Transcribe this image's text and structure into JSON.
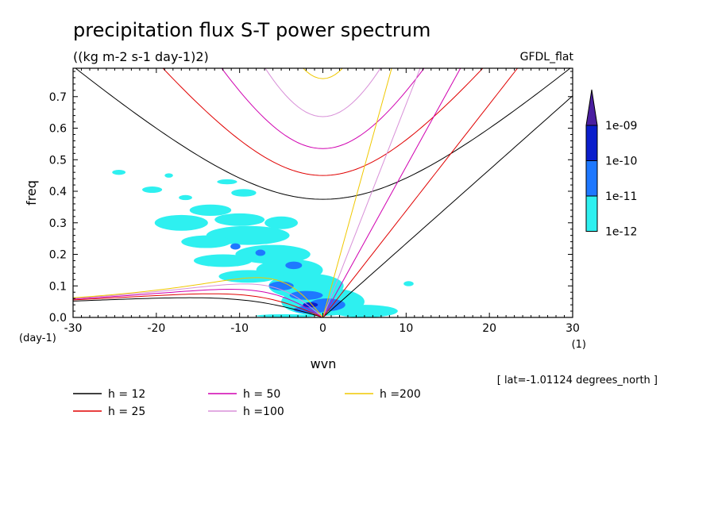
{
  "chart_data": {
    "type": "heatmap",
    "title": "precipitation flux S-T power spectrum",
    "subtitle": "((kg m-2 s-1 day-1)2)",
    "dataset_label": "GFDL_flat",
    "xlabel": "wvn",
    "ylabel": "freq",
    "x_unit": "(1)",
    "y_unit": "(day-1)",
    "xlim": [
      -30,
      30
    ],
    "ylim": [
      0,
      0.79
    ],
    "x_ticks": [
      "-30",
      "-20",
      "-10",
      "0",
      "10",
      "20",
      "30"
    ],
    "y_ticks": [
      "0.0",
      "0.1",
      "0.2",
      "0.3",
      "0.4",
      "0.5",
      "0.6",
      "0.7"
    ],
    "annotation": "[ lat=-1.01124 degrees_north ]",
    "colorbar": {
      "levels": [
        "1e-12",
        "1e-11",
        "1e-10",
        "1e-09"
      ],
      "colors": [
        "#2ef0f0",
        "#1e78ff",
        "#0a1ecc",
        "#4a1ea0"
      ]
    },
    "series": [
      {
        "name": "h = 12",
        "color": "#000000",
        "h": 12
      },
      {
        "name": "h = 25",
        "color": "#e00000",
        "h": 25
      },
      {
        "name": "h = 50",
        "color": "#d000b0",
        "h": 50
      },
      {
        "name": "h =100",
        "color": "#d890d8",
        "h": 100
      },
      {
        "name": "h =200",
        "color": "#f0c800",
        "h": 200
      }
    ],
    "blobs": [
      {
        "x": -24.5,
        "y": 0.46,
        "rx": 0.8,
        "ry": 0.008,
        "level": 0
      },
      {
        "x": -18.5,
        "y": 0.45,
        "rx": 0.5,
        "ry": 0.007,
        "level": 0
      },
      {
        "x": -11.5,
        "y": 0.43,
        "rx": 1.2,
        "ry": 0.008,
        "level": 0
      },
      {
        "x": -9.5,
        "y": 0.395,
        "rx": 1.5,
        "ry": 0.012,
        "level": 0
      },
      {
        "x": -20.5,
        "y": 0.405,
        "rx": 1.2,
        "ry": 0.01,
        "level": 0
      },
      {
        "x": -16.5,
        "y": 0.38,
        "rx": 0.8,
        "ry": 0.008,
        "level": 0
      },
      {
        "x": -13.5,
        "y": 0.34,
        "rx": 2.5,
        "ry": 0.018,
        "level": 0
      },
      {
        "x": -17,
        "y": 0.3,
        "rx": 3.2,
        "ry": 0.025,
        "level": 0
      },
      {
        "x": -10,
        "y": 0.31,
        "rx": 3.0,
        "ry": 0.02,
        "level": 0
      },
      {
        "x": -5,
        "y": 0.3,
        "rx": 2.0,
        "ry": 0.02,
        "level": 0
      },
      {
        "x": -9,
        "y": 0.26,
        "rx": 5.0,
        "ry": 0.03,
        "level": 0
      },
      {
        "x": -14,
        "y": 0.24,
        "rx": 3.0,
        "ry": 0.02,
        "level": 0
      },
      {
        "x": -6,
        "y": 0.2,
        "rx": 4.5,
        "ry": 0.03,
        "level": 0
      },
      {
        "x": -12,
        "y": 0.18,
        "rx": 3.5,
        "ry": 0.02,
        "level": 0
      },
      {
        "x": -4,
        "y": 0.15,
        "rx": 4.0,
        "ry": 0.035,
        "level": 0
      },
      {
        "x": -9,
        "y": 0.13,
        "rx": 3.5,
        "ry": 0.02,
        "level": 0
      },
      {
        "x": -2,
        "y": 0.1,
        "rx": 4.5,
        "ry": 0.04,
        "level": 0
      },
      {
        "x": 0,
        "y": 0.05,
        "rx": 5.0,
        "ry": 0.045,
        "level": 0
      },
      {
        "x": 5,
        "y": 0.02,
        "rx": 4.0,
        "ry": 0.02,
        "level": 0
      },
      {
        "x": 10.3,
        "y": 0.107,
        "rx": 0.6,
        "ry": 0.008,
        "level": 0
      },
      {
        "x": -4.5,
        "y": 0.005,
        "rx": 3.5,
        "ry": 0.005,
        "level": 0
      },
      {
        "x": -10.5,
        "y": 0.225,
        "rx": 0.6,
        "ry": 0.01,
        "level": 1
      },
      {
        "x": -7.5,
        "y": 0.205,
        "rx": 0.6,
        "ry": 0.01,
        "level": 1
      },
      {
        "x": -3.5,
        "y": 0.165,
        "rx": 1.0,
        "ry": 0.012,
        "level": 1
      },
      {
        "x": -5,
        "y": 0.1,
        "rx": 1.5,
        "ry": 0.014,
        "level": 1
      },
      {
        "x": -2,
        "y": 0.07,
        "rx": 2.0,
        "ry": 0.014,
        "level": 1
      },
      {
        "x": 0.5,
        "y": 0.04,
        "rx": 2.2,
        "ry": 0.02,
        "level": 1
      },
      {
        "x": -1.5,
        "y": 0.025,
        "rx": 2.0,
        "ry": 0.012,
        "level": 1
      },
      {
        "x": -1.5,
        "y": 0.04,
        "rx": 0.9,
        "ry": 0.008,
        "level": 2
      }
    ]
  }
}
